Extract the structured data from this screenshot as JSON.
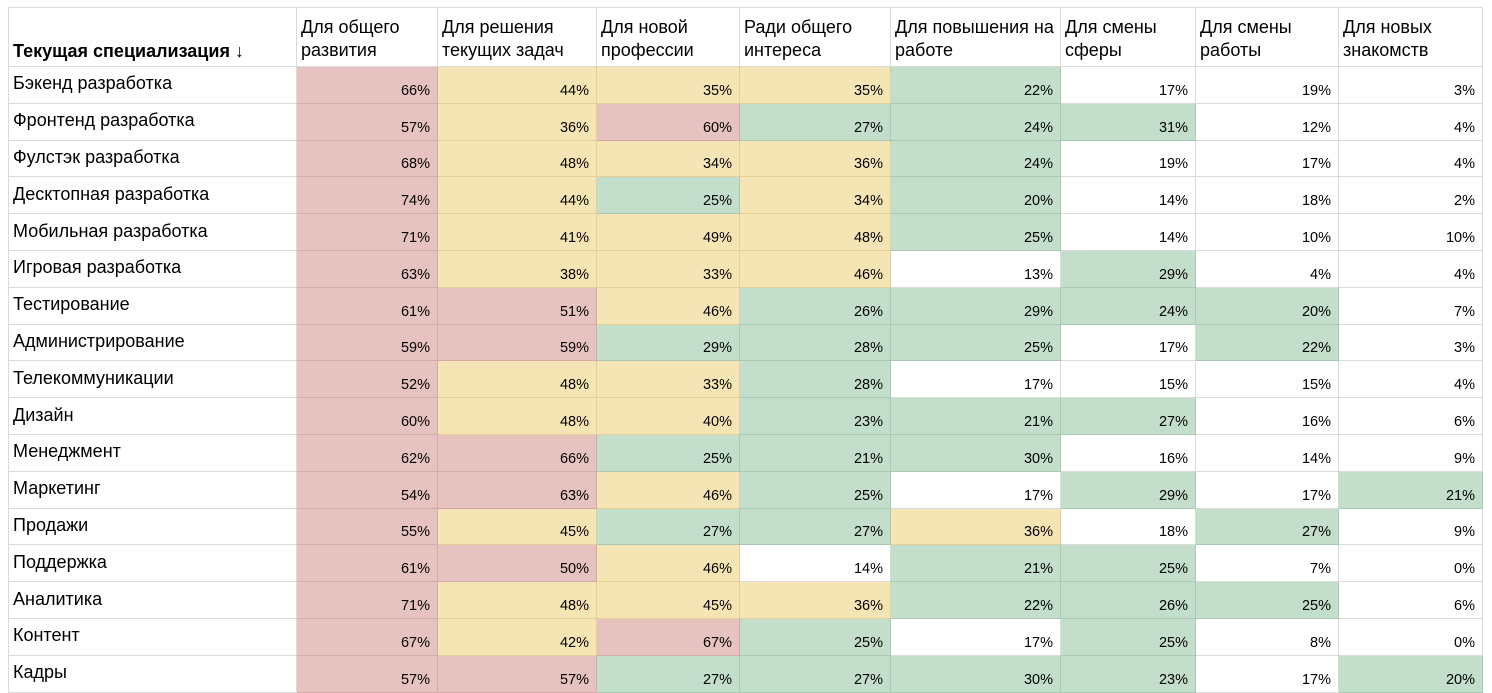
{
  "table": {
    "header_first": "Текущая специализация ↓",
    "columns": [
      "Для общего развития",
      "Для решения текущих задач",
      "Для новой профессии",
      "Ради общего интереса",
      "Для повышения на работе",
      "Для смены сферы",
      "Для смены работы",
      "Для новых знакомств"
    ],
    "colors": {
      "red": "#e6c3c0",
      "yellow": "#f6e5b4",
      "green": "#c3dfcc",
      "white": "#ffffff"
    },
    "rows": [
      {
        "name": "Бэкенд разработка",
        "values": [
          "66%",
          "44%",
          "35%",
          "35%",
          "22%",
          "17%",
          "19%",
          "3%"
        ]
      },
      {
        "name": "Фронтенд разработка",
        "values": [
          "57%",
          "36%",
          "60%",
          "27%",
          "24%",
          "31%",
          "12%",
          "4%"
        ]
      },
      {
        "name": "Фулстэк разработка",
        "values": [
          "68%",
          "48%",
          "34%",
          "36%",
          "24%",
          "19%",
          "17%",
          "4%"
        ]
      },
      {
        "name": "Десктопная разработка",
        "values": [
          "74%",
          "44%",
          "25%",
          "34%",
          "20%",
          "14%",
          "18%",
          "2%"
        ]
      },
      {
        "name": "Мобильная разработка",
        "values": [
          "71%",
          "41%",
          "49%",
          "48%",
          "25%",
          "14%",
          "10%",
          "10%"
        ]
      },
      {
        "name": "Игровая разработка",
        "values": [
          "63%",
          "38%",
          "33%",
          "46%",
          "13%",
          "29%",
          "4%",
          "4%"
        ]
      },
      {
        "name": "Тестирование",
        "values": [
          "61%",
          "51%",
          "46%",
          "26%",
          "29%",
          "24%",
          "20%",
          "7%"
        ]
      },
      {
        "name": "Администрирование",
        "values": [
          "59%",
          "59%",
          "29%",
          "28%",
          "25%",
          "17%",
          "22%",
          "3%"
        ]
      },
      {
        "name": "Телекоммуникации",
        "values": [
          "52%",
          "48%",
          "33%",
          "28%",
          "17%",
          "15%",
          "15%",
          "4%"
        ]
      },
      {
        "name": "Дизайн",
        "values": [
          "60%",
          "48%",
          "40%",
          "23%",
          "21%",
          "27%",
          "16%",
          "6%"
        ]
      },
      {
        "name": "Менеджмент",
        "values": [
          "62%",
          "66%",
          "25%",
          "21%",
          "30%",
          "16%",
          "14%",
          "9%"
        ]
      },
      {
        "name": "Маркетинг",
        "values": [
          "54%",
          "63%",
          "46%",
          "25%",
          "17%",
          "29%",
          "17%",
          "21%"
        ]
      },
      {
        "name": "Продажи",
        "values": [
          "55%",
          "45%",
          "27%",
          "27%",
          "36%",
          "18%",
          "27%",
          "9%"
        ]
      },
      {
        "name": "Поддержка",
        "values": [
          "61%",
          "50%",
          "46%",
          "14%",
          "21%",
          "25%",
          "7%",
          "0%"
        ]
      },
      {
        "name": "Аналитика",
        "values": [
          "71%",
          "48%",
          "45%",
          "36%",
          "22%",
          "26%",
          "25%",
          "6%"
        ]
      },
      {
        "name": "Контент",
        "values": [
          "67%",
          "42%",
          "67%",
          "25%",
          "17%",
          "25%",
          "8%",
          "0%"
        ]
      },
      {
        "name": "Кадры",
        "values": [
          "57%",
          "57%",
          "27%",
          "27%",
          "30%",
          "23%",
          "17%",
          "20%"
        ]
      }
    ]
  }
}
